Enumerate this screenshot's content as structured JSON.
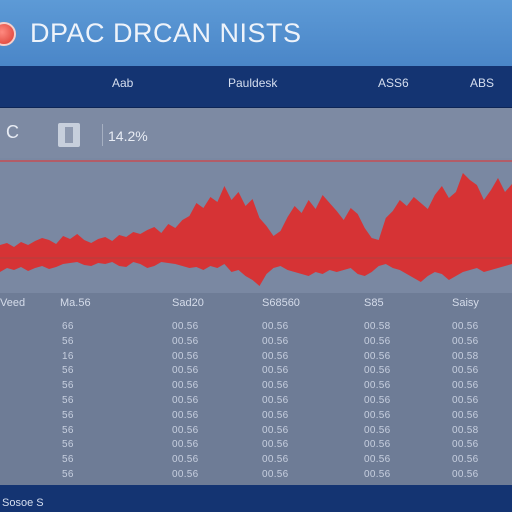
{
  "app": {
    "title": "DPAC DRCAN NISTS",
    "logo_icon": "app-logo-icon"
  },
  "nav": {
    "items": [
      "Aab",
      "Pauldesk",
      "ASS6",
      "ABS"
    ]
  },
  "toolbar": {
    "left_label": "C",
    "chart_icon": "bar-chart-icon",
    "zoom": "14.2%"
  },
  "chart_data": {
    "type": "area",
    "title": "",
    "xlabel": "",
    "ylabel": "",
    "ylim": [
      0,
      100
    ],
    "reference_line": 97,
    "reference_color": "#d84040",
    "fill_color": "#dd2b2b",
    "series": [
      {
        "upper": [
          13,
          15,
          11,
          16,
          13,
          17,
          20,
          18,
          14,
          22,
          19,
          24,
          18,
          15,
          19,
          21,
          17,
          23,
          21,
          26,
          24,
          28,
          31,
          25,
          34,
          30,
          38,
          42,
          55,
          50,
          61,
          56,
          72,
          58,
          66,
          52,
          59,
          40,
          32,
          22,
          27,
          41,
          52,
          45,
          58,
          49,
          63,
          55,
          47,
          38,
          50,
          44,
          30,
          20,
          18,
          40,
          47,
          58,
          52,
          61,
          55,
          49,
          63,
          72,
          60,
          66,
          85,
          78,
          73,
          58,
          68,
          80,
          66,
          74
        ],
        "lower": [
          -14,
          -10,
          -12,
          -9,
          -13,
          -10,
          -8,
          -11,
          -9,
          -6,
          -5,
          -4,
          -7,
          -8,
          -5,
          -6,
          -4,
          -8,
          -9,
          -4,
          -6,
          -10,
          -8,
          -4,
          -5,
          -6,
          -8,
          -10,
          -9,
          -12,
          -8,
          -10,
          -6,
          -14,
          -12,
          -18,
          -22,
          -28,
          -16,
          -10,
          -8,
          -12,
          -14,
          -16,
          -18,
          -14,
          -16,
          -12,
          -14,
          -12,
          -10,
          -16,
          -18,
          -14,
          -8,
          -6,
          -10,
          -12,
          -16,
          -20,
          -24,
          -18,
          -14,
          -16,
          -22,
          -18,
          -14,
          -12,
          -10,
          -14,
          -12,
          -10,
          -8,
          -6
        ]
      }
    ]
  },
  "table": {
    "columns": [
      "Veed",
      "Ma.56",
      "Sad20",
      "S68560",
      "S85",
      "Saisy"
    ],
    "rows": [
      [
        "",
        "66",
        "00.56",
        "00.56",
        "00.58",
        "00.56"
      ],
      [
        "",
        "56",
        "00.56",
        "00.56",
        "00.56",
        "00.56"
      ],
      [
        "",
        "16",
        "00.56",
        "00.56",
        "00.56",
        "00.58"
      ],
      [
        "",
        "56",
        "00.56",
        "00.56",
        "00.56",
        "00.56"
      ],
      [
        "",
        "56",
        "00.56",
        "00.56",
        "00.56",
        "00.56"
      ],
      [
        "",
        "56",
        "00.56",
        "00.56",
        "00.56",
        "00.56"
      ],
      [
        "",
        "56",
        "00.56",
        "00.56",
        "00.56",
        "00.56"
      ],
      [
        "",
        "56",
        "00.56",
        "00.56",
        "00.56",
        "00.58"
      ],
      [
        "",
        "56",
        "00.56",
        "00.56",
        "00.56",
        "00.56"
      ],
      [
        "",
        "56",
        "00.56",
        "00.56",
        "00.56",
        "00.56"
      ],
      [
        "",
        "56",
        "00.56",
        "00.56",
        "00.56",
        "00.56"
      ]
    ]
  },
  "status": {
    "text": "Sosoe S"
  }
}
